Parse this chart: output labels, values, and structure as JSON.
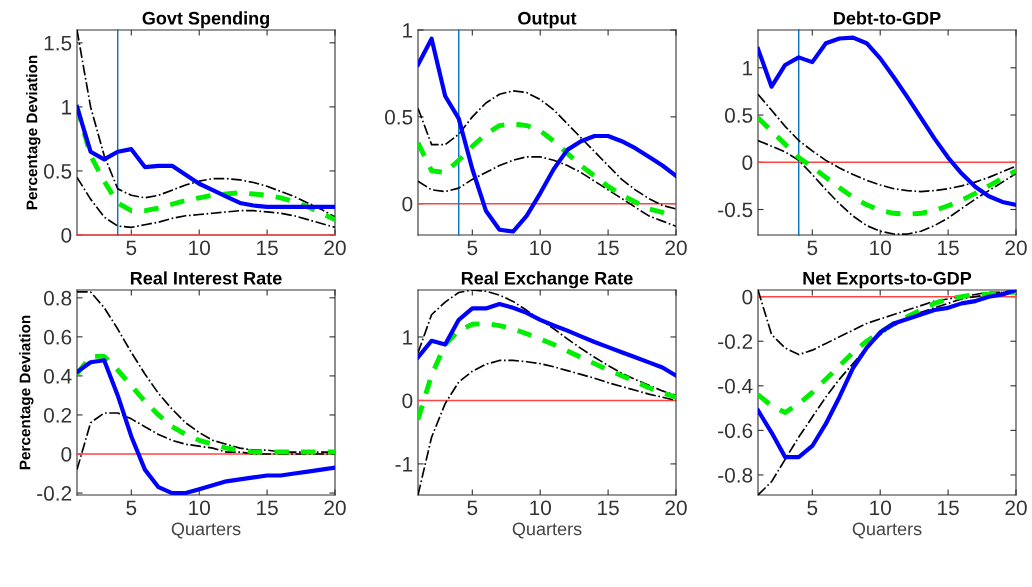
{
  "chart_data": [
    {
      "type": "line",
      "title": "Govt Spending",
      "ylabel": "Percentage Deviation",
      "x": [
        1,
        2,
        3,
        4,
        5,
        6,
        7,
        8,
        9,
        10,
        11,
        12,
        13,
        14,
        15,
        16,
        17,
        18,
        19,
        20
      ],
      "xlim": [
        1,
        20
      ],
      "xticks": [
        5,
        10,
        15,
        20
      ],
      "ylim": [
        0,
        1.6
      ],
      "yticks": [
        0,
        0.5,
        1,
        1.5
      ],
      "grid": false,
      "legend": false,
      "series": [
        {
          "color": "#000000",
          "line_style": "dashdot",
          "values": [
            1.6,
            1.0,
            0.62,
            0.36,
            0.31,
            0.29,
            0.31,
            0.35,
            0.39,
            0.42,
            0.44,
            0.44,
            0.43,
            0.41,
            0.38,
            0.34,
            0.3,
            0.25,
            0.2,
            0.14
          ]
        },
        {
          "color": "#000000",
          "line_style": "dashdot",
          "values": [
            0.45,
            0.28,
            0.14,
            0.07,
            0.06,
            0.08,
            0.1,
            0.13,
            0.15,
            0.16,
            0.17,
            0.18,
            0.19,
            0.19,
            0.18,
            0.17,
            0.15,
            0.12,
            0.09,
            0.06
          ]
        },
        {
          "color": "#00ee00",
          "line_style": "dashed",
          "values": [
            1.0,
            0.62,
            0.42,
            0.25,
            0.19,
            0.19,
            0.21,
            0.24,
            0.27,
            0.29,
            0.31,
            0.32,
            0.33,
            0.32,
            0.31,
            0.29,
            0.26,
            0.22,
            0.17,
            0.12
          ]
        },
        {
          "color": "#0000ff",
          "line_style": "solid",
          "values": [
            1.0,
            0.65,
            0.59,
            0.65,
            0.67,
            0.53,
            0.54,
            0.54,
            0.47,
            0.4,
            0.35,
            0.3,
            0.25,
            0.23,
            0.22,
            0.22,
            0.22,
            0.22,
            0.22,
            0.22
          ]
        }
      ],
      "ref_lines": [
        {
          "axis": "y",
          "value": 0,
          "color": "#ff4444"
        },
        {
          "axis": "x",
          "value": 4,
          "color": "#0072bd"
        }
      ]
    },
    {
      "type": "line",
      "title": "Output",
      "x": [
        1,
        2,
        3,
        4,
        5,
        6,
        7,
        8,
        9,
        10,
        11,
        12,
        13,
        14,
        15,
        16,
        17,
        18,
        19,
        20
      ],
      "xlim": [
        1,
        20
      ],
      "xticks": [
        5,
        10,
        15,
        20
      ],
      "ylim": [
        -0.18,
        1
      ],
      "yticks": [
        0,
        0.5,
        1
      ],
      "grid": false,
      "legend": false,
      "series": [
        {
          "color": "#000000",
          "line_style": "dashdot",
          "values": [
            0.55,
            0.34,
            0.34,
            0.4,
            0.5,
            0.58,
            0.63,
            0.65,
            0.64,
            0.6,
            0.54,
            0.46,
            0.38,
            0.3,
            0.22,
            0.14,
            0.08,
            0.03,
            -0.01,
            -0.03
          ]
        },
        {
          "color": "#000000",
          "line_style": "dashdot",
          "values": [
            0.13,
            0.08,
            0.07,
            0.09,
            0.14,
            0.18,
            0.22,
            0.25,
            0.27,
            0.27,
            0.25,
            0.22,
            0.18,
            0.13,
            0.08,
            0.03,
            -0.02,
            -0.07,
            -0.1,
            -0.13
          ]
        },
        {
          "color": "#00ee00",
          "line_style": "dashed",
          "values": [
            0.35,
            0.19,
            0.18,
            0.25,
            0.33,
            0.4,
            0.45,
            0.46,
            0.45,
            0.42,
            0.36,
            0.29,
            0.22,
            0.16,
            0.1,
            0.05,
            0.01,
            -0.03,
            -0.05,
            -0.08
          ]
        },
        {
          "color": "#0000ff",
          "line_style": "solid",
          "values": [
            0.8,
            0.95,
            0.62,
            0.49,
            0.2,
            -0.04,
            -0.15,
            -0.16,
            -0.07,
            0.06,
            0.2,
            0.31,
            0.36,
            0.39,
            0.39,
            0.36,
            0.32,
            0.27,
            0.22,
            0.16
          ]
        }
      ],
      "ref_lines": [
        {
          "axis": "y",
          "value": 0,
          "color": "#ff4444"
        },
        {
          "axis": "x",
          "value": 4,
          "color": "#0072bd"
        }
      ]
    },
    {
      "type": "line",
      "title": "Debt-to-GDP",
      "x": [
        1,
        2,
        3,
        4,
        5,
        6,
        7,
        8,
        9,
        10,
        11,
        12,
        13,
        14,
        15,
        16,
        17,
        18,
        19,
        20
      ],
      "xlim": [
        1,
        20
      ],
      "xticks": [
        5,
        10,
        15,
        20
      ],
      "ylim": [
        -0.77,
        1.4
      ],
      "yticks": [
        -0.5,
        0,
        0.5,
        1
      ],
      "grid": false,
      "legend": false,
      "series": [
        {
          "color": "#000000",
          "line_style": "dashdot",
          "values": [
            0.72,
            0.55,
            0.38,
            0.23,
            0.12,
            0.02,
            -0.06,
            -0.13,
            -0.19,
            -0.24,
            -0.28,
            -0.3,
            -0.31,
            -0.3,
            -0.28,
            -0.25,
            -0.21,
            -0.16,
            -0.1,
            -0.04
          ]
        },
        {
          "color": "#000000",
          "line_style": "dashdot",
          "values": [
            0.23,
            0.17,
            0.11,
            0.02,
            -0.13,
            -0.29,
            -0.44,
            -0.57,
            -0.67,
            -0.73,
            -0.76,
            -0.76,
            -0.73,
            -0.67,
            -0.59,
            -0.49,
            -0.39,
            -0.3,
            -0.21,
            -0.12
          ]
        },
        {
          "color": "#00ee00",
          "line_style": "dashed",
          "values": [
            0.47,
            0.33,
            0.19,
            0.05,
            -0.05,
            -0.16,
            -0.27,
            -0.37,
            -0.45,
            -0.51,
            -0.54,
            -0.55,
            -0.54,
            -0.51,
            -0.46,
            -0.4,
            -0.33,
            -0.25,
            -0.17,
            -0.09
          ]
        },
        {
          "color": "#0000ff",
          "line_style": "solid",
          "values": [
            1.2,
            0.8,
            1.03,
            1.11,
            1.06,
            1.26,
            1.31,
            1.32,
            1.26,
            1.1,
            0.9,
            0.69,
            0.47,
            0.25,
            0.05,
            -0.12,
            -0.26,
            -0.36,
            -0.42,
            -0.45
          ]
        }
      ],
      "ref_lines": [
        {
          "axis": "y",
          "value": 0,
          "color": "#ff4444"
        },
        {
          "axis": "x",
          "value": 4,
          "color": "#0072bd"
        }
      ]
    },
    {
      "type": "line",
      "title": "Real Interest Rate",
      "ylabel": "Percentage Deviation",
      "xlabel": "Quarters",
      "x": [
        1,
        2,
        3,
        4,
        5,
        6,
        7,
        8,
        9,
        10,
        11,
        12,
        13,
        14,
        15,
        16,
        17,
        18,
        19,
        20
      ],
      "xlim": [
        1,
        20
      ],
      "xticks": [
        5,
        10,
        15,
        20
      ],
      "ylim": [
        -0.21,
        0.84
      ],
      "yticks": [
        -0.2,
        0,
        0.2,
        0.4,
        0.6,
        0.8
      ],
      "grid": false,
      "legend": false,
      "series": [
        {
          "color": "#000000",
          "line_style": "dashdot",
          "values": [
            0.83,
            0.83,
            0.75,
            0.64,
            0.52,
            0.41,
            0.31,
            0.23,
            0.16,
            0.11,
            0.07,
            0.05,
            0.03,
            0.02,
            0.02,
            0.01,
            0.01,
            0.01,
            0.01,
            0.01
          ]
        },
        {
          "color": "#000000",
          "line_style": "dashdot",
          "values": [
            -0.08,
            0.16,
            0.21,
            0.21,
            0.18,
            0.14,
            0.1,
            0.07,
            0.05,
            0.04,
            0.03,
            0.01,
            0.01,
            0.0,
            0.0,
            0.0,
            0.0,
            0.0,
            0.0,
            0.0
          ]
        },
        {
          "color": "#00ee00",
          "line_style": "dashed",
          "values": [
            0.41,
            0.5,
            0.5,
            0.43,
            0.35,
            0.27,
            0.2,
            0.14,
            0.1,
            0.07,
            0.05,
            0.03,
            0.02,
            0.01,
            0.01,
            0.01,
            0.01,
            0.01,
            0.01,
            0.01
          ]
        },
        {
          "color": "#0000ff",
          "line_style": "solid",
          "values": [
            0.42,
            0.47,
            0.48,
            0.3,
            0.09,
            -0.08,
            -0.17,
            -0.2,
            -0.2,
            -0.18,
            -0.16,
            -0.14,
            -0.13,
            -0.12,
            -0.11,
            -0.11,
            -0.1,
            -0.09,
            -0.08,
            -0.07
          ]
        }
      ],
      "ref_lines": [
        {
          "axis": "y",
          "value": 0,
          "color": "#ff4444"
        }
      ]
    },
    {
      "type": "line",
      "title": "Real Exchange Rate",
      "xlabel": "Quarters",
      "x": [
        1,
        2,
        3,
        4,
        5,
        6,
        7,
        8,
        9,
        10,
        11,
        12,
        13,
        14,
        15,
        16,
        17,
        18,
        19,
        20
      ],
      "xlim": [
        1,
        20
      ],
      "xticks": [
        5,
        10,
        15,
        20
      ],
      "ylim": [
        -1.49,
        1.74
      ],
      "yticks": [
        -1,
        0,
        1
      ],
      "grid": false,
      "legend": false,
      "series": [
        {
          "color": "#000000",
          "line_style": "dashdot",
          "values": [
            0.75,
            1.35,
            1.55,
            1.7,
            1.74,
            1.72,
            1.66,
            1.56,
            1.42,
            1.27,
            1.13,
            0.97,
            0.82,
            0.68,
            0.55,
            0.43,
            0.33,
            0.24,
            0.15,
            0.08
          ]
        },
        {
          "color": "#000000",
          "line_style": "dashdot",
          "values": [
            -1.49,
            -0.58,
            -0.05,
            0.29,
            0.46,
            0.57,
            0.63,
            0.63,
            0.61,
            0.58,
            0.53,
            0.47,
            0.41,
            0.35,
            0.28,
            0.22,
            0.16,
            0.1,
            0.05,
            0.0
          ]
        },
        {
          "color": "#00ee00",
          "line_style": "dashed",
          "values": [
            -0.3,
            0.4,
            0.88,
            1.1,
            1.2,
            1.21,
            1.18,
            1.13,
            1.05,
            0.97,
            0.88,
            0.78,
            0.68,
            0.58,
            0.48,
            0.39,
            0.3,
            0.2,
            0.12,
            0.05
          ]
        },
        {
          "color": "#0000ff",
          "line_style": "solid",
          "values": [
            0.68,
            0.94,
            0.88,
            1.27,
            1.45,
            1.45,
            1.52,
            1.46,
            1.38,
            1.27,
            1.18,
            1.1,
            1.01,
            0.92,
            0.84,
            0.76,
            0.68,
            0.6,
            0.52,
            0.39
          ]
        }
      ],
      "ref_lines": [
        {
          "axis": "y",
          "value": 0,
          "color": "#ff4444"
        }
      ]
    },
    {
      "type": "line",
      "title": "Net Exports-to-GDP",
      "xlabel": "Quarters",
      "x": [
        1,
        2,
        3,
        4,
        5,
        6,
        7,
        8,
        9,
        10,
        11,
        12,
        13,
        14,
        15,
        16,
        17,
        18,
        19,
        20
      ],
      "xlim": [
        1,
        20
      ],
      "xticks": [
        5,
        10,
        15,
        20
      ],
      "ylim": [
        -0.89,
        0.03
      ],
      "yticks": [
        -0.8,
        -0.6,
        -0.4,
        -0.2,
        0
      ],
      "grid": false,
      "legend": false,
      "series": [
        {
          "color": "#000000",
          "line_style": "dashdot",
          "values": [
            0.03,
            -0.17,
            -0.23,
            -0.26,
            -0.24,
            -0.21,
            -0.18,
            -0.15,
            -0.12,
            -0.1,
            -0.08,
            -0.06,
            -0.04,
            -0.02,
            -0.01,
            0.0,
            0.01,
            0.02,
            0.02,
            0.02
          ]
        },
        {
          "color": "#000000",
          "line_style": "dashdot",
          "values": [
            -0.89,
            -0.83,
            -0.73,
            -0.63,
            -0.54,
            -0.45,
            -0.37,
            -0.3,
            -0.23,
            -0.17,
            -0.13,
            -0.1,
            -0.07,
            -0.05,
            -0.03,
            -0.01,
            0.0,
            0.01,
            0.02,
            0.03
          ]
        },
        {
          "color": "#00ee00",
          "line_style": "dashed",
          "values": [
            -0.44,
            -0.49,
            -0.52,
            -0.48,
            -0.43,
            -0.37,
            -0.31,
            -0.25,
            -0.2,
            -0.16,
            -0.12,
            -0.09,
            -0.06,
            -0.03,
            -0.01,
            0.0,
            0.01,
            0.01,
            0.02,
            0.02
          ]
        },
        {
          "color": "#0000ff",
          "line_style": "solid",
          "values": [
            -0.51,
            -0.61,
            -0.72,
            -0.72,
            -0.67,
            -0.57,
            -0.45,
            -0.32,
            -0.23,
            -0.16,
            -0.12,
            -0.1,
            -0.08,
            -0.06,
            -0.05,
            -0.03,
            -0.02,
            0.0,
            0.01,
            0.03
          ]
        }
      ],
      "ref_lines": [
        {
          "axis": "y",
          "value": 0,
          "color": "#ff4444"
        }
      ]
    }
  ]
}
